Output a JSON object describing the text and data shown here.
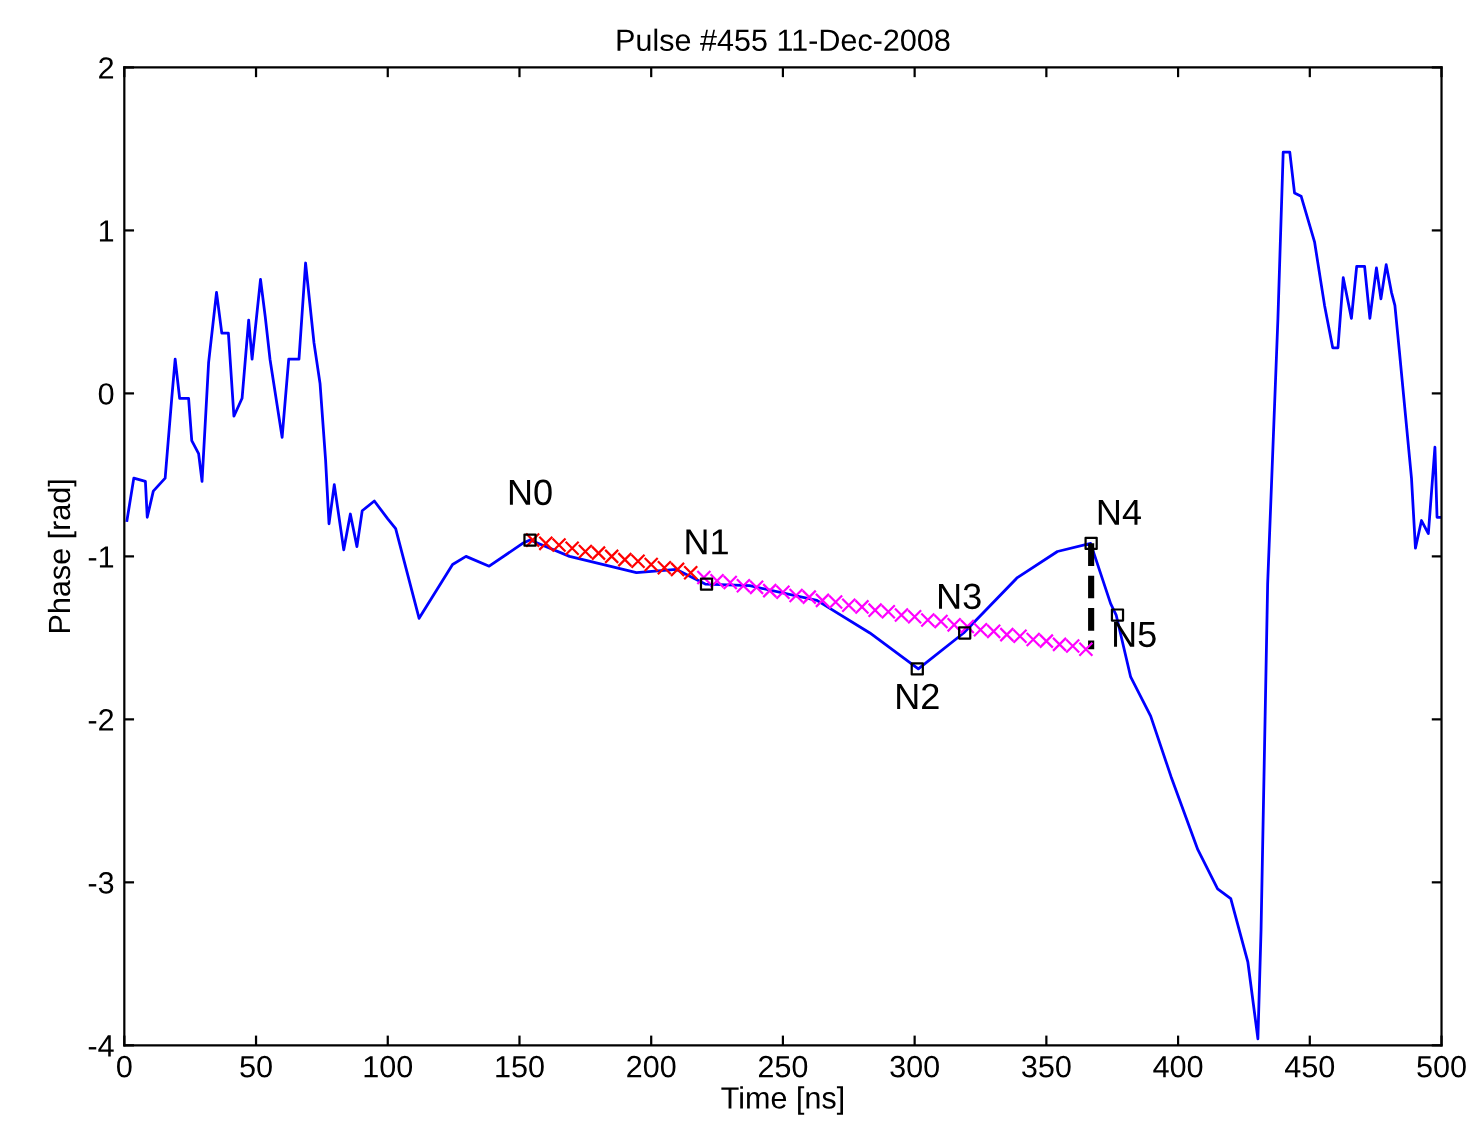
{
  "chart_data": {
    "type": "line",
    "title": "Pulse #455 11-Dec-2008",
    "xlabel": "Time [ns]",
    "ylabel": "Phase [rad]",
    "xlim": [
      0,
      500
    ],
    "ylim": [
      -4,
      2
    ],
    "xticks": [
      0,
      50,
      100,
      150,
      200,
      250,
      300,
      350,
      400,
      450,
      500
    ],
    "yticks": [
      -4,
      -3,
      -2,
      -1,
      0,
      1,
      2
    ],
    "grid": false,
    "legend": false,
    "series": [
      {
        "color": "#0000ff",
        "line_style": "solid",
        "marker": "none",
        "x": [
          1,
          3.6,
          8,
          8.7,
          11,
          15.5,
          18,
          19.3,
          21,
          24.4,
          25.6,
          28.2,
          29.5,
          32,
          35,
          37,
          39.5,
          41.6,
          44.7,
          47.2,
          48.5,
          51.7,
          53.5,
          55.3,
          59.9,
          62.4,
          66.3,
          68.8,
          72,
          74.3,
          76.4,
          77.7,
          79.7,
          83.3,
          85.8,
          88.3,
          90.3,
          94.9,
          100,
          103,
          111.9,
          124.6,
          129.7,
          138.5,
          151.2,
          154,
          169,
          194.4,
          209.6,
          220.5,
          237.4,
          262.9,
          283,
          301.4,
          318.6,
          339,
          354.2,
          366.8,
          374.4,
          376.5,
          382,
          389.6,
          397.3,
          407.5,
          415,
          420,
          426.5,
          430.3,
          431.5,
          434,
          437.9,
          439.9,
          442.4,
          444.2,
          446.7,
          451.8,
          455.6,
          458.7,
          460.7,
          462.7,
          465.8,
          467.8,
          470.8,
          472.8,
          475.3,
          477,
          479,
          481,
          482.3,
          484,
          488.6,
          490.1,
          492.4,
          495,
          497.5,
          498.3,
          500
        ],
        "values": [
          -0.78,
          -0.52,
          -0.54,
          -0.76,
          -0.6,
          -0.52,
          -0.03,
          0.21,
          -0.03,
          -0.03,
          -0.29,
          -0.37,
          -0.54,
          0.19,
          0.62,
          0.37,
          0.37,
          -0.14,
          -0.03,
          0.45,
          0.21,
          0.7,
          0.47,
          0.21,
          -0.27,
          0.21,
          0.21,
          0.8,
          0.31,
          0.06,
          -0.41,
          -0.8,
          -0.56,
          -0.96,
          -0.74,
          -0.94,
          -0.72,
          -0.66,
          -0.77,
          -0.83,
          -1.38,
          -1.05,
          -1.0,
          -1.06,
          -0.92,
          -0.9,
          -1.0,
          -1.1,
          -1.08,
          -1.17,
          -1.18,
          -1.27,
          -1.47,
          -1.69,
          -1.47,
          -1.13,
          -0.97,
          -0.92,
          -1.29,
          -1.36,
          -1.74,
          -1.98,
          -2.35,
          -2.8,
          -3.04,
          -3.1,
          -3.49,
          -3.96,
          -3.29,
          -1.17,
          0.46,
          1.48,
          1.48,
          1.23,
          1.21,
          0.93,
          0.54,
          0.28,
          0.28,
          0.71,
          0.46,
          0.78,
          0.78,
          0.46,
          0.77,
          0.58,
          0.79,
          0.62,
          0.54,
          0.26,
          -0.52,
          -0.95,
          -0.78,
          -0.86,
          -0.33,
          -0.76,
          -0.76
        ]
      },
      {
        "type": "scatter",
        "color": "#ff0000",
        "marker": "cross",
        "x": [
          155,
          160,
          165,
          170,
          175,
          180,
          185,
          190,
          195,
          200,
          205,
          210,
          215
        ],
        "values": [
          -0.9,
          -0.92,
          -0.93,
          -0.95,
          -0.97,
          -0.98,
          -1.0,
          -1.02,
          -1.03,
          -1.05,
          -1.07,
          -1.08,
          -1.1
        ]
      },
      {
        "type": "scatter",
        "color": "#ff00ff",
        "marker": "cross",
        "x": [
          220,
          225,
          230,
          235,
          240,
          245,
          250,
          255,
          260,
          265,
          270,
          275,
          280,
          285,
          290,
          295,
          300,
          305,
          310,
          315,
          320,
          325,
          330,
          335,
          340,
          345,
          350,
          355,
          360,
          365
        ],
        "values": [
          -1.13,
          -1.15,
          -1.16,
          -1.18,
          -1.19,
          -1.21,
          -1.22,
          -1.24,
          -1.25,
          -1.27,
          -1.28,
          -1.3,
          -1.31,
          -1.33,
          -1.34,
          -1.36,
          -1.37,
          -1.39,
          -1.4,
          -1.42,
          -1.43,
          -1.45,
          -1.46,
          -1.48,
          -1.49,
          -1.51,
          -1.52,
          -1.54,
          -1.55,
          -1.57
        ]
      },
      {
        "type": "line",
        "color": "#000000",
        "line_style": "dashed",
        "marker": "none",
        "x": [
          367,
          367
        ],
        "values": [
          -0.92,
          -1.57
        ]
      },
      {
        "type": "scatter",
        "color": "#000000",
        "marker": "square",
        "x": [
          154,
          221,
          301,
          319,
          367,
          377
        ],
        "values": [
          -0.9,
          -1.17,
          -1.69,
          -1.47,
          -0.92,
          -1.36
        ]
      }
    ],
    "annotations": [
      {
        "text": "N0",
        "x": 154,
        "y": -0.9
      },
      {
        "text": "N1",
        "x": 221,
        "y": -1.17
      },
      {
        "text": "N2",
        "x": 301,
        "y": -1.69
      },
      {
        "text": "N3",
        "x": 319,
        "y": -1.47
      },
      {
        "text": "N4",
        "x": 367,
        "y": -0.92
      },
      {
        "text": "N5",
        "x": 377,
        "y": -1.36
      }
    ]
  }
}
